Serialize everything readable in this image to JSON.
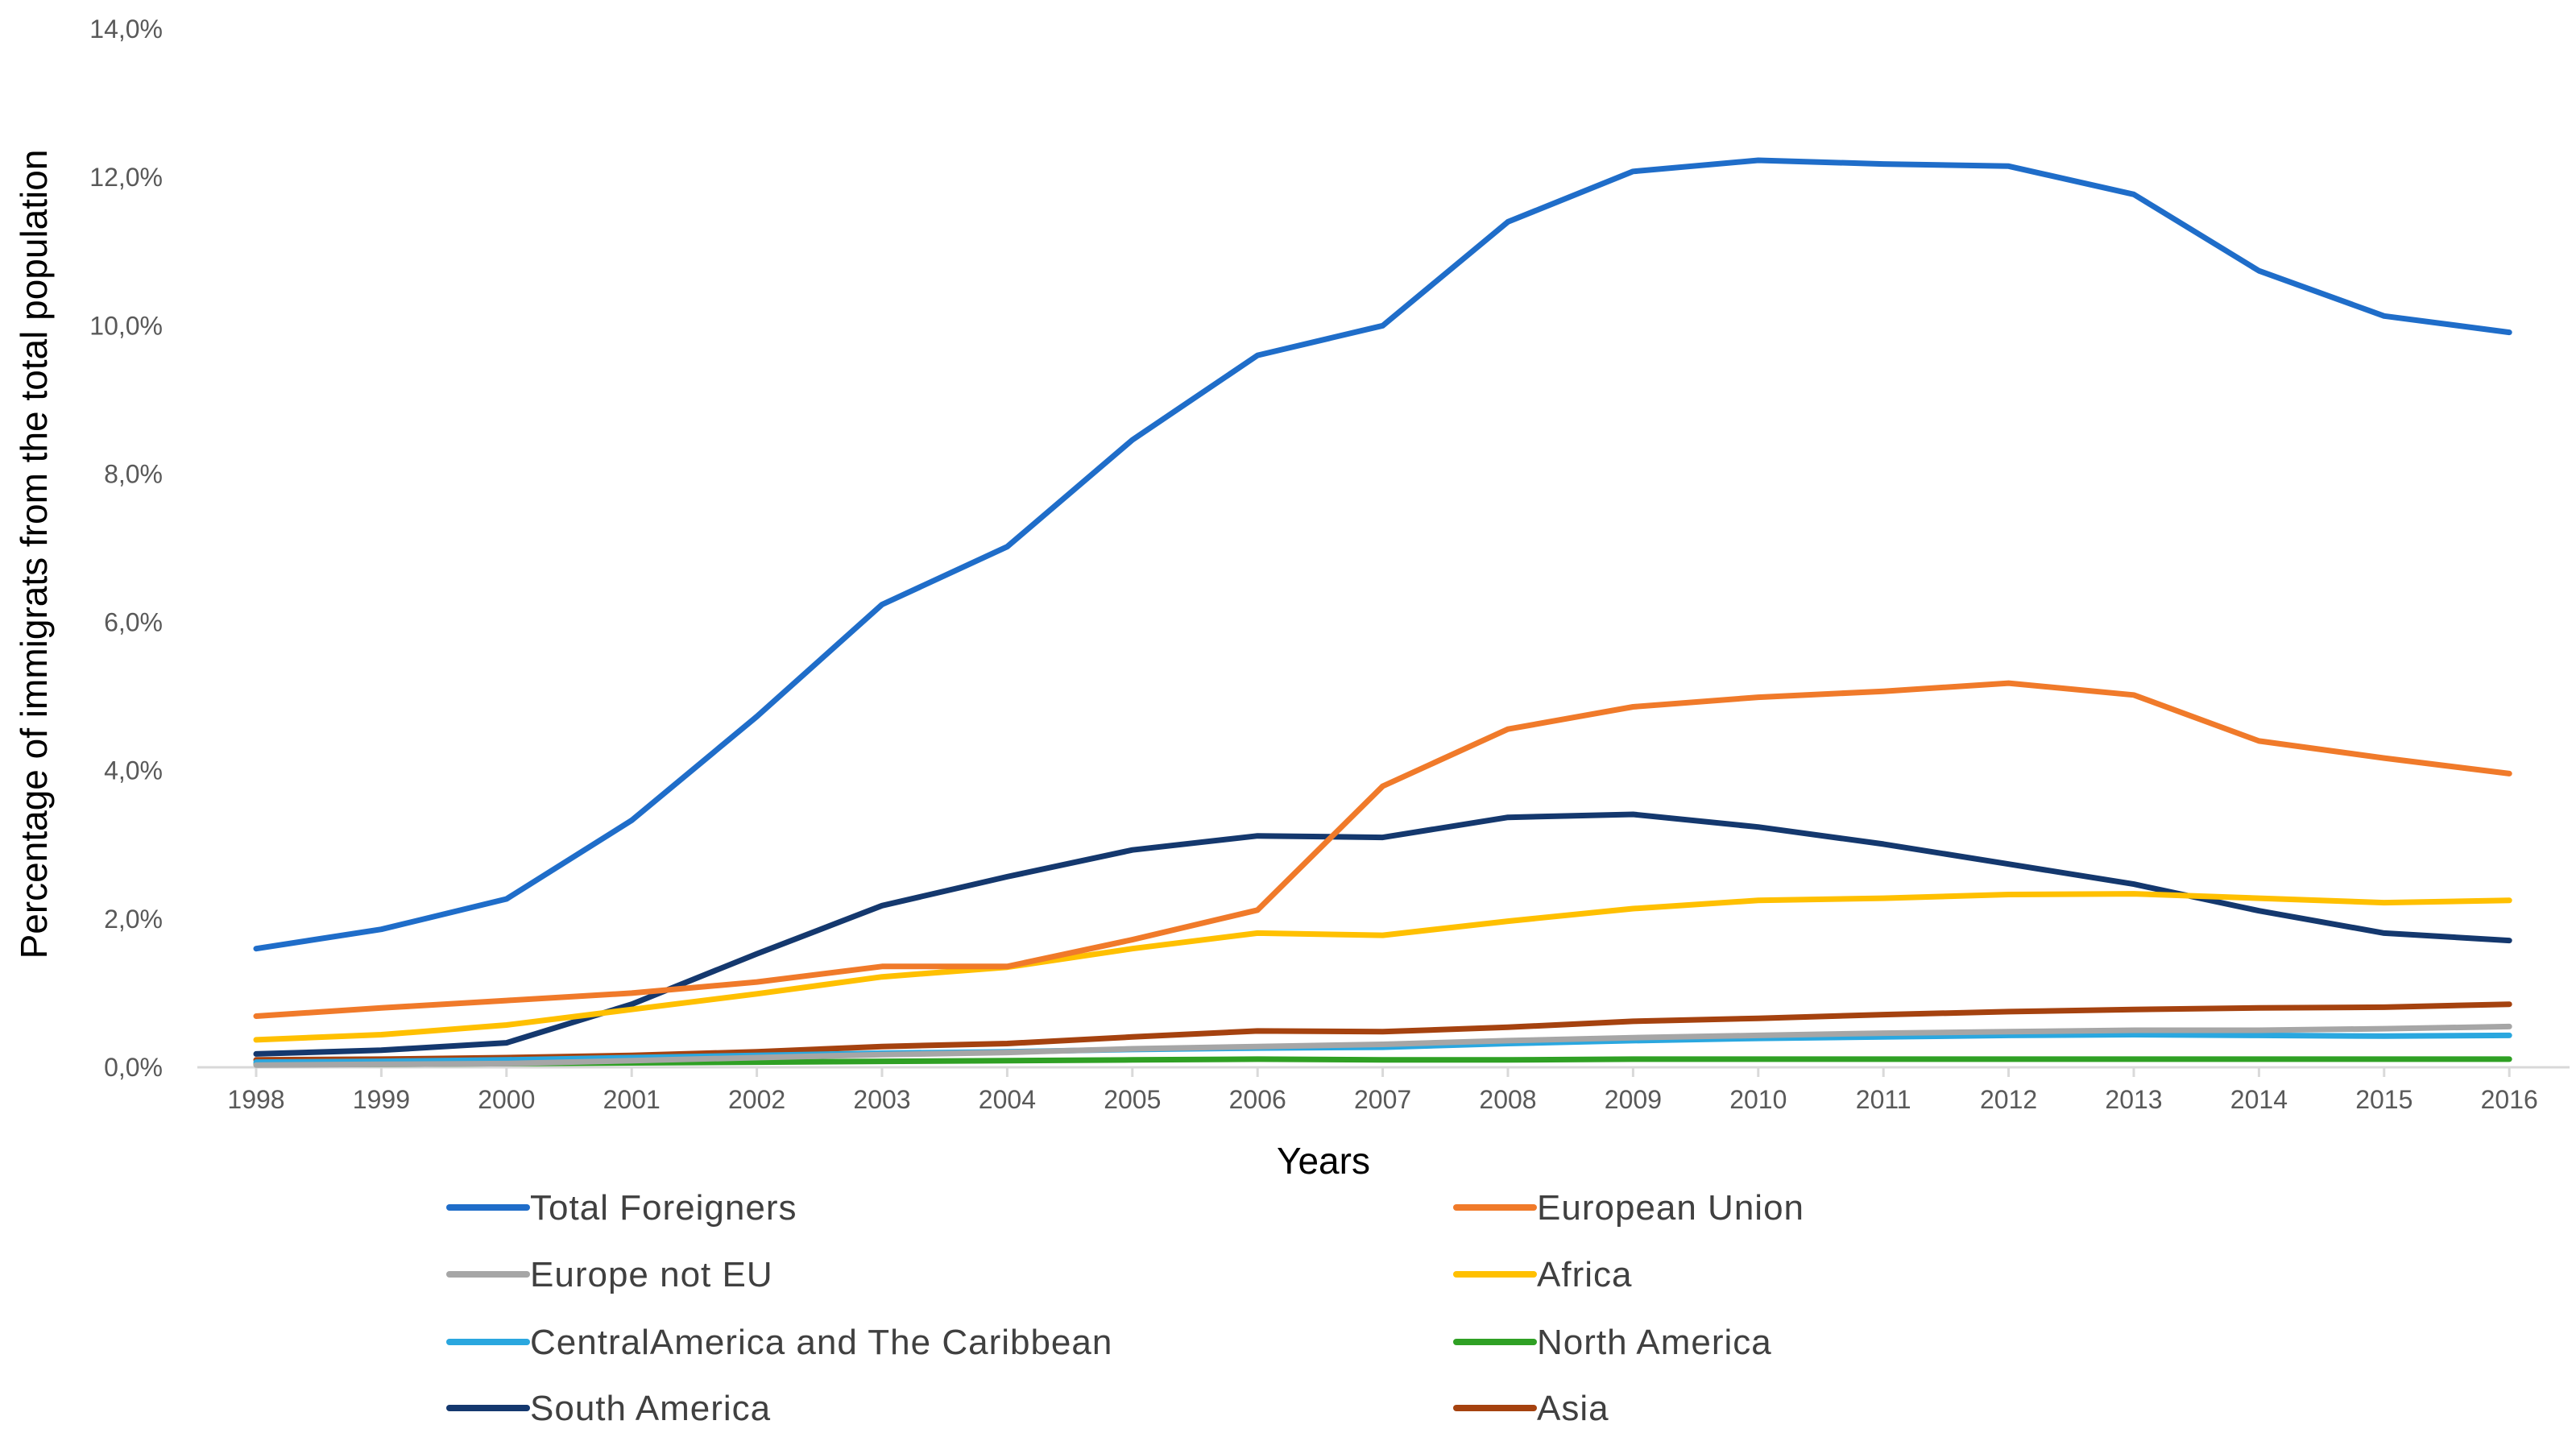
{
  "chart_data": {
    "type": "line",
    "title": "",
    "xlabel": "Years",
    "ylabel": "Percentage of immigrats from the total population",
    "ylim": [
      0,
      14
    ],
    "ytick_values": [
      0,
      2,
      4,
      6,
      8,
      10,
      12,
      14
    ],
    "ytick_labels": [
      "0,0%",
      "2,0%",
      "4,0%",
      "6,0%",
      "8,0%",
      "10,0%",
      "12,0%",
      "14,0%"
    ],
    "categories": [
      "1998",
      "1999",
      "2000",
      "2001",
      "2002",
      "2003",
      "2004",
      "2005",
      "2006",
      "2007",
      "2008",
      "2009",
      "2010",
      "2011",
      "2012",
      "2013",
      "2014",
      "2015",
      "2016"
    ],
    "grid": false,
    "legend_position": "bottom",
    "series": [
      {
        "name": "Total Foreigners",
        "color": "#1f6dc9",
        "values": [
          1.6,
          1.86,
          2.27,
          3.33,
          4.73,
          6.24,
          7.02,
          8.46,
          9.6,
          10.0,
          11.4,
          12.08,
          12.23,
          12.18,
          12.15,
          11.77,
          10.74,
          10.13,
          9.91
        ]
      },
      {
        "name": "European Union",
        "color": "#f07a2a",
        "values": [
          0.69,
          0.8,
          0.9,
          1.0,
          1.15,
          1.36,
          1.36,
          1.72,
          2.12,
          3.79,
          4.56,
          4.86,
          4.99,
          5.07,
          5.18,
          5.02,
          4.4,
          4.17,
          3.96
        ]
      },
      {
        "name": "Europe not EU",
        "color": "#a6a6a6",
        "values": [
          0.03,
          0.04,
          0.05,
          0.09,
          0.13,
          0.17,
          0.2,
          0.25,
          0.28,
          0.31,
          0.36,
          0.4,
          0.43,
          0.46,
          0.48,
          0.5,
          0.5,
          0.52,
          0.55
        ]
      },
      {
        "name": "Africa",
        "color": "#ffc000",
        "values": [
          0.37,
          0.44,
          0.57,
          0.78,
          0.99,
          1.22,
          1.35,
          1.6,
          1.81,
          1.78,
          1.97,
          2.14,
          2.25,
          2.28,
          2.33,
          2.34,
          2.28,
          2.22,
          2.25
        ]
      },
      {
        "name": "CentralAmerica and The Caribbean",
        "color": "#2aa7df",
        "values": [
          0.07,
          0.08,
          0.1,
          0.13,
          0.16,
          0.19,
          0.21,
          0.24,
          0.26,
          0.27,
          0.32,
          0.36,
          0.39,
          0.41,
          0.43,
          0.44,
          0.43,
          0.42,
          0.43
        ]
      },
      {
        "name": "North America",
        "color": "#2fa024",
        "values": [
          0.04,
          0.04,
          0.05,
          0.06,
          0.07,
          0.08,
          0.09,
          0.1,
          0.11,
          0.1,
          0.1,
          0.11,
          0.11,
          0.11,
          0.11,
          0.11,
          0.11,
          0.11,
          0.11
        ]
      },
      {
        "name": "South America",
        "color": "#14386e",
        "values": [
          0.18,
          0.23,
          0.33,
          0.85,
          1.53,
          2.18,
          2.57,
          2.93,
          3.12,
          3.1,
          3.37,
          3.41,
          3.24,
          3.01,
          2.74,
          2.47,
          2.11,
          1.81,
          1.71
        ]
      },
      {
        "name": "Asia",
        "color": "#a5420f",
        "values": [
          0.1,
          0.11,
          0.13,
          0.16,
          0.21,
          0.28,
          0.32,
          0.41,
          0.49,
          0.48,
          0.54,
          0.62,
          0.66,
          0.71,
          0.75,
          0.78,
          0.8,
          0.81,
          0.85
        ]
      }
    ]
  }
}
